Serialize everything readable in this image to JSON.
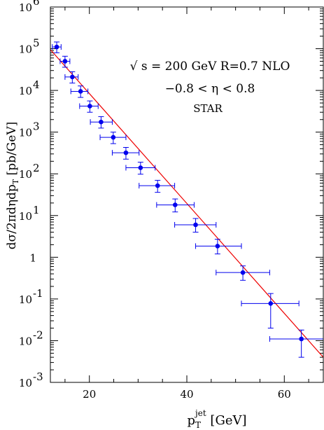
{
  "chart_data": {
    "type": "scatter",
    "title": "",
    "xlabel": {
      "main": "p",
      "sub": "T",
      "sup": "jet",
      "unit": " [GeV]"
    },
    "ylabel": {
      "main": "dσ/2πdηdp",
      "sub": "T",
      "unit": "  [pb/GeV]"
    },
    "x_scale": "linear",
    "y_scale": "log",
    "xlim": [
      12,
      68
    ],
    "ylim": [
      0.001,
      1000000
    ],
    "x_ticks": [
      {
        "value": 20,
        "label": "20"
      },
      {
        "value": 40,
        "label": "40"
      },
      {
        "value": 60,
        "label": "60"
      }
    ],
    "y_ticks": [
      {
        "value": 0.001,
        "base": "10",
        "exp": "-3"
      },
      {
        "value": 0.01,
        "base": "10",
        "exp": "-2"
      },
      {
        "value": 0.1,
        "base": "10",
        "exp": "-1"
      },
      {
        "value": 1,
        "base": "1",
        "exp": ""
      },
      {
        "value": 10,
        "base": "10",
        "exp": "1"
      },
      {
        "value": 100,
        "base": "10",
        "exp": "2"
      },
      {
        "value": 1000,
        "base": "10",
        "exp": "3"
      },
      {
        "value": 10000,
        "base": "10",
        "exp": "4"
      },
      {
        "value": 100000,
        "base": "10",
        "exp": "5"
      },
      {
        "value": 1000000,
        "base": "10",
        "exp": "6"
      }
    ],
    "annotations": [
      "√ s  =  200  GeV  R=0.7   NLO",
      "−0.8  <  η   <  0.8",
      "STAR"
    ],
    "series": [
      {
        "points": [
          {
            "x": 13.3,
            "y": 110000,
            "x_lo": 12.4,
            "x_hi": 14.2,
            "y_lo": 80000,
            "y_hi": 145000
          },
          {
            "x": 15.0,
            "y": 50000,
            "x_lo": 14.0,
            "x_hi": 16.0,
            "y_lo": 36000,
            "y_hi": 66000
          },
          {
            "x": 16.5,
            "y": 21000,
            "x_lo": 15.0,
            "x_hi": 17.7,
            "y_lo": 15000,
            "y_hi": 28000
          },
          {
            "x": 18.2,
            "y": 9500,
            "x_lo": 16.2,
            "x_hi": 19.7,
            "y_lo": 6800,
            "y_hi": 12800
          },
          {
            "x": 20.1,
            "y": 4200,
            "x_lo": 18.0,
            "x_hi": 21.8,
            "y_lo": 3000,
            "y_hi": 5600
          },
          {
            "x": 22.4,
            "y": 1750,
            "x_lo": 20.2,
            "x_hi": 24.7,
            "y_lo": 1250,
            "y_hi": 2350
          },
          {
            "x": 24.9,
            "y": 750,
            "x_lo": 22.2,
            "x_hi": 27.5,
            "y_lo": 530,
            "y_hi": 1000
          },
          {
            "x": 27.5,
            "y": 320,
            "x_lo": 24.7,
            "x_hi": 30.2,
            "y_lo": 225,
            "y_hi": 430
          },
          {
            "x": 30.5,
            "y": 140,
            "x_lo": 27.5,
            "x_hi": 33.5,
            "y_lo": 98,
            "y_hi": 190
          },
          {
            "x": 34.0,
            "y": 52,
            "x_lo": 30.2,
            "x_hi": 37.5,
            "y_lo": 36,
            "y_hi": 70
          },
          {
            "x": 37.6,
            "y": 18,
            "x_lo": 33.8,
            "x_hi": 41.5,
            "y_lo": 12.2,
            "y_hi": 25
          },
          {
            "x": 41.8,
            "y": 6.0,
            "x_lo": 37.5,
            "x_hi": 46.0,
            "y_lo": 4.0,
            "y_hi": 8.5
          },
          {
            "x": 46.3,
            "y": 1.85,
            "x_lo": 41.8,
            "x_hi": 51.2,
            "y_lo": 1.2,
            "y_hi": 2.7
          },
          {
            "x": 51.5,
            "y": 0.43,
            "x_lo": 46.0,
            "x_hi": 57.0,
            "y_lo": 0.28,
            "y_hi": 0.62
          },
          {
            "x": 57.2,
            "y": 0.078,
            "x_lo": 51.2,
            "x_hi": 63.0,
            "y_lo": 0.02,
            "y_hi": 0.135
          },
          {
            "x": 63.5,
            "y": 0.011,
            "x_lo": 57.0,
            "x_hi": 68.0,
            "y_lo": 0.004,
            "y_hi": 0.018
          }
        ]
      }
    ],
    "curve": {
      "x": [
        12,
        68
      ],
      "y": [
        95000,
        0.004
      ]
    },
    "colors": {
      "points": "#0000ee",
      "curve": "#ee0000",
      "axes": "#000000"
    }
  }
}
